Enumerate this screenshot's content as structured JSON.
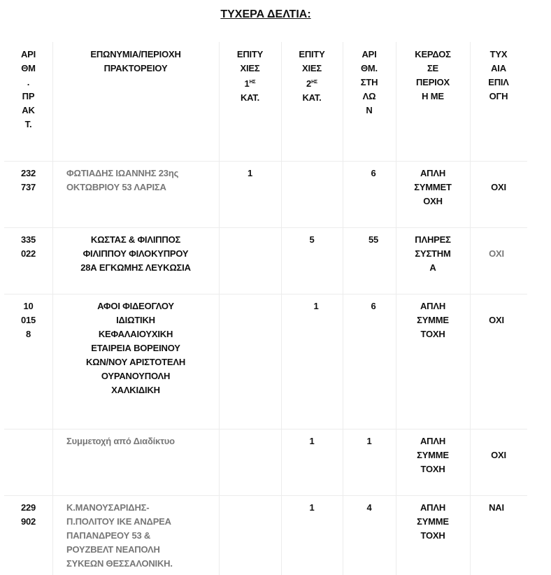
{
  "title": "ΤΥΧΕΡΑ ΔΕΛΤΙΑ:",
  "headers": {
    "agency_no": "ΑΡΙ\nΘΜ\n.\nΠΡ\nΑΚ\nΤ.",
    "name": "ΕΠΩΝΥΜΙΑ/ΠΕΡΙΟΧΗ\nΠΡΑΚΤΟΡΕΙΟΥ",
    "wins1_a": "ΕΠΙΤΥ\nΧΙΕΣ\n1",
    "wins1_sup": "ΗΣ",
    "wins1_b": "\nΚΑΤ.",
    "wins2_a": "ΕΠΙΤΥ\nΧΙΕΣ\n2",
    "wins2_sup": "ΗΣ",
    "wins2_b": "\nΚΑΤ.",
    "columns": "ΑΡΙ\nΘΜ.\nΣΤΗ\nΛΩ\nΝ",
    "win_type": "ΚΕΡΔΟΣ\nΣΕ\nΠΕΡΙΟΧ\nΗ ΜΕ",
    "random": "ΤΥΧ\nΑΙΑ\nΕΠΙΛ\nΟΓΗ"
  },
  "rows": [
    {
      "agency_no": "232\n737",
      "name": "ΦΩΤΙΑΔΗΣ ΙΩΑΝΝΗΣ 23ης\nΟΚΤΩΒΡΙΟΥ 53 ΛΑΡΙΣΑ",
      "wins1": "1",
      "wins2": "",
      "columns": "6",
      "win_type": "ΑΠΛΗ\nΣΥΜΜΕΤ\nΟΧΗ",
      "random": "ΟΧΙ"
    },
    {
      "agency_no": "335\n022",
      "name": "ΚΩΣΤΑΣ & ΦΙΛΙΠΠΟΣ\nΦΙΛΙΠΠΟΥ ΦΙΛΟΚΥΠΡΟΥ\n28Α ΕΓΚΩΜΗΣ ΛΕΥΚΩΣΙΑ",
      "wins1": "",
      "wins2": "5",
      "columns": "55",
      "win_type": "ΠΛΗΡΕΣ\nΣΥΣΤΗΜ\nΑ",
      "random": "ΟΧΙ"
    },
    {
      "agency_no": "10\n015\n8",
      "name": "ΑΦΟΙ ΦΙΔΕΟΓΛΟΥ\nΙΔΙΩΤΙΚΗ\nΚΕΦΑΛΑΙΟΥΧΙΚΗ\nΕΤΑΙΡΕΙΑ ΒΟΡΕΙΝΟΥ\nΚΩΝ/ΝΟΥ ΑΡΙΣΤΟΤΕΛΗ\nΟΥΡΑΝΟΥΠΟΛΗ\nΧΑΛΚΙΔΙΚΗ",
      "wins1": "",
      "wins2": "1",
      "columns": "6",
      "win_type": "ΑΠΛΗ\nΣΥΜΜΕ\nΤΟΧΗ",
      "random": "ΟΧΙ"
    },
    {
      "agency_no": "",
      "name": "Συμμετοχή από Διαδίκτυο",
      "wins1": "",
      "wins2": "1",
      "columns": "1",
      "win_type": "ΑΠΛΗ\nΣΥΜΜΕ\nΤΟΧΗ",
      "random": "ΟΧΙ"
    },
    {
      "agency_no": "229\n902",
      "name": " Κ.ΜΑΝΟΥΣΑΡΙΔΗΣ-\nΠ.ΠΟΛΙΤΟΥ ΙΚΕ ΑΝΔΡΕΑ\nΠΑΠΑΝΔΡΕΟΥ 53 &\nΡΟΥΖΒΕΛΤ ΝΕΑΠΟΛΗ\nΣΥΚΕΩΝ ΘΕΣΣΑΛΟΝΙΚΗ.",
      "wins1": "",
      "wins2": "1",
      "columns": "4",
      "win_type": "ΑΠΛΗ\nΣΥΜΜΕ\nΤΟΧΗ",
      "random": "ΝΑΙ"
    }
  ],
  "colors": {
    "text": "#111111",
    "muted": "#777777",
    "grid": "#ececec"
  }
}
